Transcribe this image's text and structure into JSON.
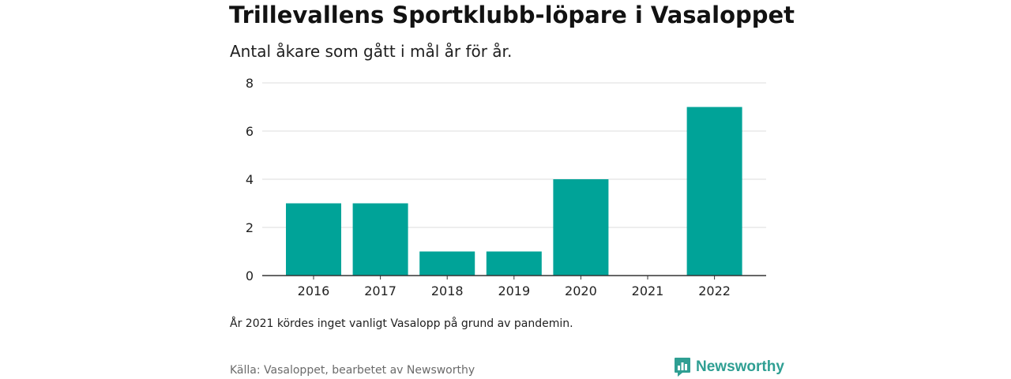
{
  "title": "Trillevallens Sportklubb-löpare i Vasaloppet",
  "subtitle": "Antal åkare som gått i mål år för år.",
  "note": "År 2021 kördes inget vanligt Vasalopp på grund av pandemin.",
  "source": "Källa: Vasaloppet, bearbetet av Newsworthy",
  "brand": {
    "name": "Newsworthy",
    "icon": "newsworthy-logo-icon",
    "color": "#2f9f93"
  },
  "colors": {
    "bar": "#00a398",
    "grid": "#dcdcdc",
    "axis": "#333333"
  },
  "chart_data": {
    "type": "bar",
    "categories": [
      "2016",
      "2017",
      "2018",
      "2019",
      "2020",
      "2021",
      "2022"
    ],
    "values": [
      3,
      3,
      1,
      1,
      4,
      0,
      7
    ],
    "yticks": [
      0,
      2,
      4,
      6,
      8
    ],
    "ylim": [
      0,
      8
    ],
    "grid": true
  }
}
